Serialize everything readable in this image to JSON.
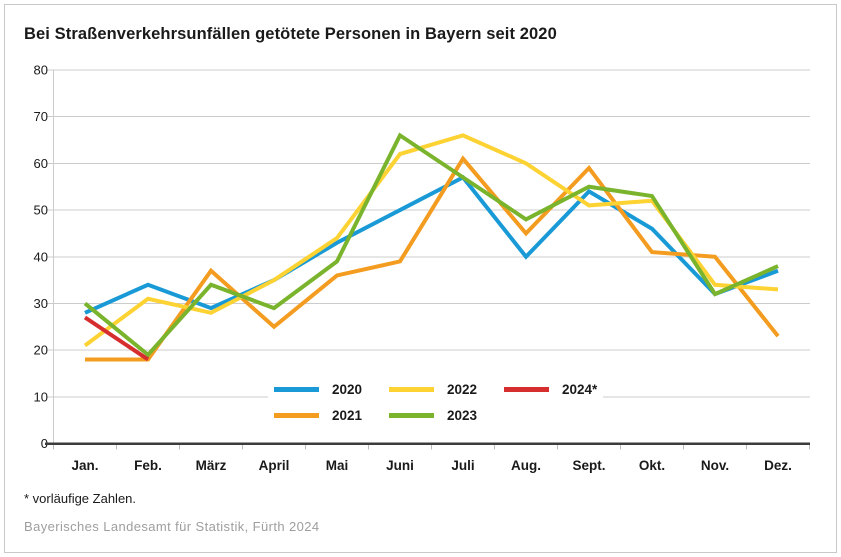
{
  "footnote": "* vorläufige Zahlen.",
  "source": "Bayerisches Landesamt für Statistik, Fürth 2024",
  "colors": {
    "background": "#ffffff",
    "frame_border": "#c9c9c9",
    "grid": "#cccccc",
    "axis_baseline": "#3c3c3c",
    "tick": "#bbbbbb",
    "label_text": "#1a1a1a",
    "source_text": "#9e9e9e"
  },
  "chart_data": {
    "type": "line",
    "title": "Bei Straßenverkehrsunfällen getötete Personen in Bayern seit 2020",
    "xlabel": "",
    "ylabel": "",
    "categories": [
      "Jan.",
      "Feb.",
      "März",
      "April",
      "Mai",
      "Juni",
      "Juli",
      "Aug.",
      "Sept.",
      "Okt.",
      "Nov.",
      "Dez."
    ],
    "y_ticks": [
      0,
      10,
      20,
      30,
      40,
      50,
      60,
      70,
      80
    ],
    "ylim": [
      0,
      80
    ],
    "grid": true,
    "legend_position": "inside-bottom-center",
    "series": [
      {
        "name": "2020",
        "color": "#199ad6",
        "values": [
          28,
          34,
          29,
          35,
          43,
          50,
          57,
          40,
          54,
          46,
          32,
          37
        ]
      },
      {
        "name": "2021",
        "color": "#f39c1f",
        "values": [
          18,
          18,
          37,
          25,
          36,
          39,
          61,
          45,
          59,
          41,
          40,
          23
        ]
      },
      {
        "name": "2022",
        "color": "#fdd233",
        "values": [
          21,
          31,
          28,
          35,
          44,
          62,
          66,
          60,
          51,
          52,
          34,
          33
        ]
      },
      {
        "name": "2023",
        "color": "#7ab42d",
        "values": [
          30,
          19,
          34,
          29,
          39,
          66,
          57,
          48,
          55,
          53,
          32,
          38
        ]
      },
      {
        "name": "2024*",
        "color": "#d62e2e",
        "values": [
          27,
          18,
          null,
          null,
          null,
          null,
          null,
          null,
          null,
          null,
          null,
          null
        ]
      }
    ]
  }
}
